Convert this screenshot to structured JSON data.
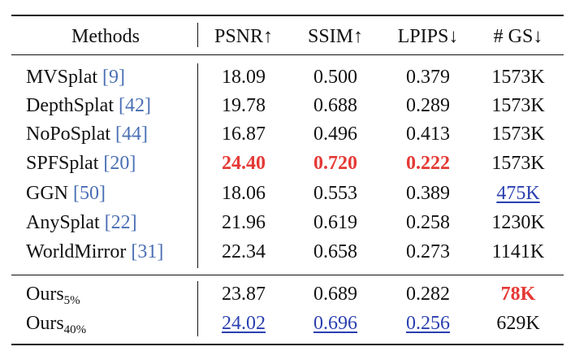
{
  "table": {
    "header": [
      "Methods",
      "PSNR↑",
      "SSIM↑",
      "LPIPS↓",
      "# GS↓"
    ],
    "groups": [
      [
        {
          "name": "MVSplat",
          "cite": "[9]",
          "cells": [
            {
              "text": "18.09"
            },
            {
              "text": "0.500"
            },
            {
              "text": "0.379"
            },
            {
              "text": "1573K"
            }
          ]
        },
        {
          "name": "DepthSplat",
          "cite": "[42]",
          "cells": [
            {
              "text": "19.78"
            },
            {
              "text": "0.688"
            },
            {
              "text": "0.289"
            },
            {
              "text": "1573K"
            }
          ]
        },
        {
          "name": "NoPoSplat",
          "cite": "[44]",
          "cells": [
            {
              "text": "16.87"
            },
            {
              "text": "0.496"
            },
            {
              "text": "0.413"
            },
            {
              "text": "1573K"
            }
          ]
        },
        {
          "name": "SPFSplat",
          "cite": "[20]",
          "cells": [
            {
              "text": "24.40",
              "rank": 1
            },
            {
              "text": "0.720",
              "rank": 1
            },
            {
              "text": "0.222",
              "rank": 1
            },
            {
              "text": "1573K"
            }
          ]
        },
        {
          "name": "GGN",
          "cite": "[50]",
          "cells": [
            {
              "text": "18.06"
            },
            {
              "text": "0.553"
            },
            {
              "text": "0.389"
            },
            {
              "text": "475K",
              "rank": 2
            }
          ]
        },
        {
          "name": "AnySplat",
          "cite": "[22]",
          "cells": [
            {
              "text": "21.96"
            },
            {
              "text": "0.619"
            },
            {
              "text": "0.258"
            },
            {
              "text": "1230K"
            }
          ]
        },
        {
          "name": "WorldMirror",
          "cite": "[31]",
          "cells": [
            {
              "text": "22.34"
            },
            {
              "text": "0.658"
            },
            {
              "text": "0.273"
            },
            {
              "text": "1141K"
            }
          ]
        }
      ],
      [
        {
          "name": "Ours",
          "sub": "5%",
          "cells": [
            {
              "text": "23.87"
            },
            {
              "text": "0.689"
            },
            {
              "text": "0.282"
            },
            {
              "text": "78K",
              "rank": 1
            }
          ]
        },
        {
          "name": "Ours",
          "sub": "40%",
          "cells": [
            {
              "text": "24.02",
              "rank": 2
            },
            {
              "text": "0.696",
              "rank": 2
            },
            {
              "text": "0.256",
              "rank": 2
            },
            {
              "text": "629K"
            }
          ]
        }
      ]
    ]
  }
}
